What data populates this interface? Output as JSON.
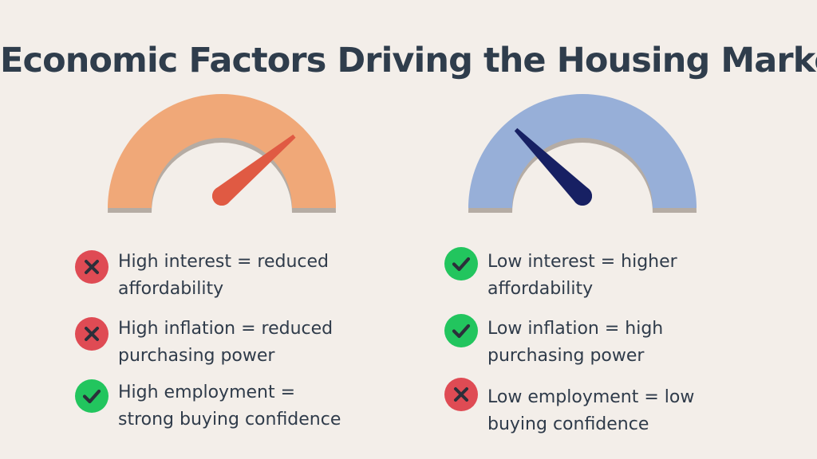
{
  "title": "Economic Factors Driving the Housing Market",
  "colors": {
    "background": "#f3eee9",
    "title": "#2f3d4c",
    "left_gauge_arc": "#f0a878",
    "left_gauge_needle": "#e05a43",
    "right_gauge_arc": "#97afd8",
    "right_gauge_needle": "#172063",
    "gauge_shadow": "#b5aca4",
    "bad_icon": "#df4b54",
    "good_icon": "#22c55e",
    "icon_mark": "#2b2f3a"
  },
  "gauges": [
    {
      "name": "high-rates-gauge",
      "needle_level": 0.78
    },
    {
      "name": "low-rates-gauge",
      "needle_level": 0.25
    }
  ],
  "left_items": [
    {
      "status": "bad",
      "icon": "x-icon",
      "line1": "High interest = reduced",
      "line2": "affordability"
    },
    {
      "status": "bad",
      "icon": "x-icon",
      "line1": "High inflation = reduced",
      "line2": "purchasing power"
    },
    {
      "status": "good",
      "icon": "check-icon",
      "line1": "High employment =",
      "line2": "strong buying confidence"
    }
  ],
  "right_items": [
    {
      "status": "good",
      "icon": "check-icon",
      "line1": "Low interest = higher",
      "line2": "affordability"
    },
    {
      "status": "good",
      "icon": "check-icon",
      "line1": "Low inflation = high",
      "line2": "purchasing power"
    },
    {
      "status": "bad",
      "icon": "x-icon",
      "line1": "Low employment = low",
      "line2": "buying confidence"
    }
  ]
}
